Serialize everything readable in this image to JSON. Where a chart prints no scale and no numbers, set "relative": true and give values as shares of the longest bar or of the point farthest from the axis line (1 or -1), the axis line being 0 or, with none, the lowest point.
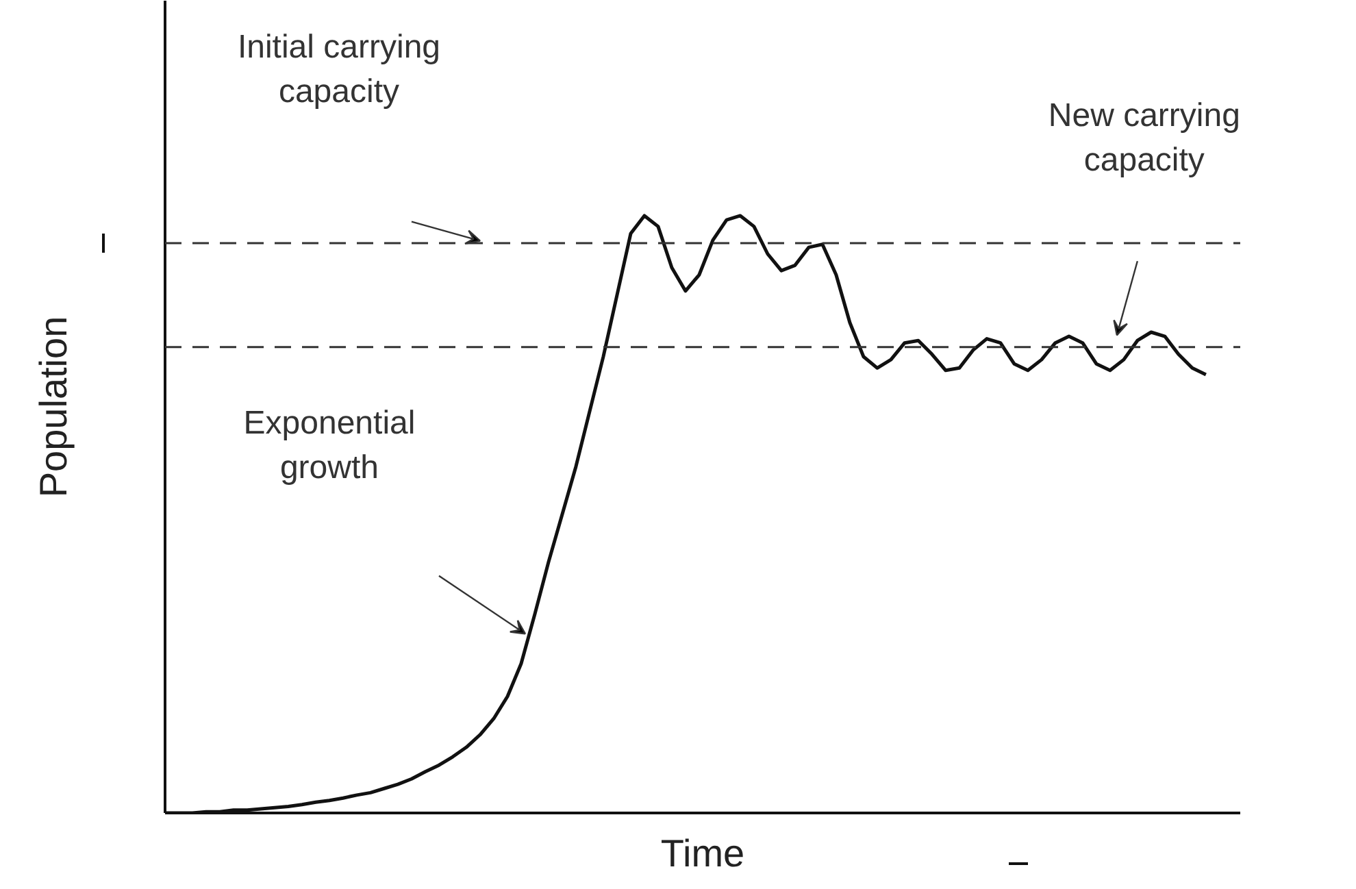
{
  "chart_data": {
    "type": "line",
    "relative": true,
    "xlabel": "Time",
    "ylabel": "Population",
    "grid": false,
    "line_style": "solid",
    "categories": [
      null,
      null,
      null,
      null,
      null,
      null,
      null,
      null,
      null,
      null,
      null,
      null,
      null,
      null,
      null,
      null,
      null,
      null,
      null,
      null,
      null,
      null,
      null,
      null,
      null,
      null,
      null,
      null,
      null,
      null,
      null,
      null,
      null,
      null,
      null,
      null,
      null,
      null,
      null,
      null,
      null,
      null,
      null,
      null,
      null,
      null,
      null,
      null,
      null,
      null,
      null,
      null,
      null,
      null,
      null,
      null,
      null,
      null,
      null,
      null,
      null,
      null,
      null,
      null,
      null,
      null,
      null,
      null,
      null,
      null,
      null,
      null,
      null,
      null,
      null,
      null,
      null
    ],
    "series": [
      {
        "color": "#111111",
        "values": [
          0,
          0,
          0,
          0.002,
          0.002,
          0.005,
          0.005,
          0.007,
          0.009,
          0.011,
          0.014,
          0.018,
          0.021,
          0.025,
          0.03,
          0.034,
          0.041,
          0.048,
          0.057,
          0.069,
          0.08,
          0.094,
          0.11,
          0.131,
          0.158,
          0.195,
          0.25,
          0.333,
          0.42,
          0.5,
          0.58,
          0.672,
          0.764,
          0.867,
          0.97,
          1,
          0.982,
          0.913,
          0.874,
          0.901,
          0.959,
          0.993,
          1,
          0.982,
          0.936,
          0.908,
          0.917,
          0.947,
          0.952,
          0.901,
          0.821,
          0.764,
          0.745,
          0.759,
          0.787,
          0.791,
          0.768,
          0.741,
          0.745,
          0.775,
          0.794,
          0.787,
          0.752,
          0.741,
          0.759,
          0.787,
          0.798,
          0.787,
          0.752,
          0.741,
          0.759,
          0.791,
          0.805,
          0.798,
          0.768,
          0.745,
          0.734
        ]
      }
    ],
    "ref_lines": [
      {
        "axis": "y",
        "value": 0.954,
        "color": "#333333",
        "line_style": "dashed"
      },
      {
        "axis": "y",
        "value": 0.78,
        "color": "#333333",
        "line_style": "dashed"
      }
    ],
    "annotations": [
      "Initial carrying\ncapacity",
      "New carrying\ncapacity",
      "Exponential\ngrowth"
    ]
  }
}
